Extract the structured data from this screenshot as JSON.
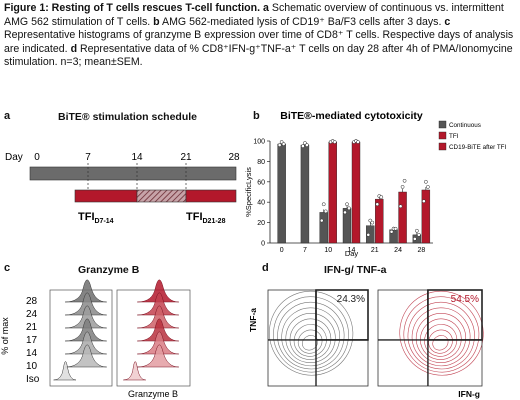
{
  "caption": {
    "title": "Figure 1: Resting of T cells rescues T-cell function.",
    "a_letter": "a",
    "a_text": "Schematic overview of continuous vs. intermittent AMG 562 stimulation of T cells.",
    "b_letter": "b",
    "b_text": "AMG 562-mediated lysis of CD19⁺ Ba/F3 cells after 3 days.",
    "c_letter": "c",
    "c_text": "Representative histograms of granzyme B expression over time of CD8⁺ T cells. Respective days of analysis are indicated.",
    "d_letter": "d",
    "d_text": "Representative data of % CD8⁺IFN-g⁺TNF-a⁺ T cells on day 28 after 4h of PMA/Ionomycine stimulation. n=3; mean±SEM."
  },
  "panel_a": {
    "label": "a",
    "title": "BiTE® stimulation schedule",
    "day_prefix": "Day",
    "days": [
      "0",
      "7",
      "14",
      "21",
      "28"
    ],
    "tfi1_main": "TFI",
    "tfi1_sub": "D7-14",
    "tfi2_main": "TFI",
    "tfi2_sub": "D21-28",
    "colors": {
      "gray": "#6b6b6b",
      "red": "#b3182b"
    }
  },
  "panel_b": {
    "label": "b"
  },
  "panel_c": {
    "label": "c",
    "title": "Granzyme B",
    "ylabel": "% of max",
    "xlabel": "Granzyme B",
    "rows": [
      "28",
      "24",
      "21",
      "17",
      "14",
      "10",
      "Iso"
    ]
  },
  "panel_d": {
    "label": "d",
    "title": "IFN-g/ TNF-a",
    "ylabel": "TNF-a",
    "xlabel": "IFN-g",
    "pct_left": "24.3%",
    "pct_right": "54.5%"
  },
  "chart_data": {
    "type": "bar",
    "title": "BiTE®-mediated cytotoxicity",
    "xlabel": "Day",
    "ylabel": "%SpecificLysis",
    "ylim": [
      0,
      100
    ],
    "yticks": [
      0,
      20,
      40,
      60,
      80,
      100
    ],
    "categories": [
      "0",
      "7",
      "10",
      "14",
      "21",
      "24",
      "28"
    ],
    "legend_position": "top-right",
    "series": [
      {
        "name": "Continuous",
        "color": "#555555",
        "values": [
          97,
          96,
          30,
          34,
          17,
          13,
          8
        ]
      },
      {
        "name": "TFI",
        "color": "#b3182b",
        "values": [
          null,
          null,
          99,
          99,
          43,
          50,
          52
        ]
      },
      {
        "name": "CD19-BiTE after TFI",
        "color": "#b3182b",
        "values": [
          null,
          null,
          null,
          null,
          null,
          null,
          null
        ]
      }
    ],
    "points": {
      "Continuous": [
        [
          96,
          99,
          97
        ],
        [
          95,
          98,
          96
        ],
        [
          22,
          38,
          31
        ],
        [
          30,
          38,
          34
        ],
        [
          8,
          22,
          20
        ],
        [
          11,
          14,
          14
        ],
        [
          4,
          12,
          8
        ]
      ],
      "TFI": [
        [],
        [],
        [
          99,
          100,
          99
        ],
        [
          99,
          100,
          99
        ],
        [
          38,
          46,
          45
        ],
        [
          36,
          55,
          61
        ],
        [
          41,
          60,
          55
        ]
      ]
    }
  }
}
